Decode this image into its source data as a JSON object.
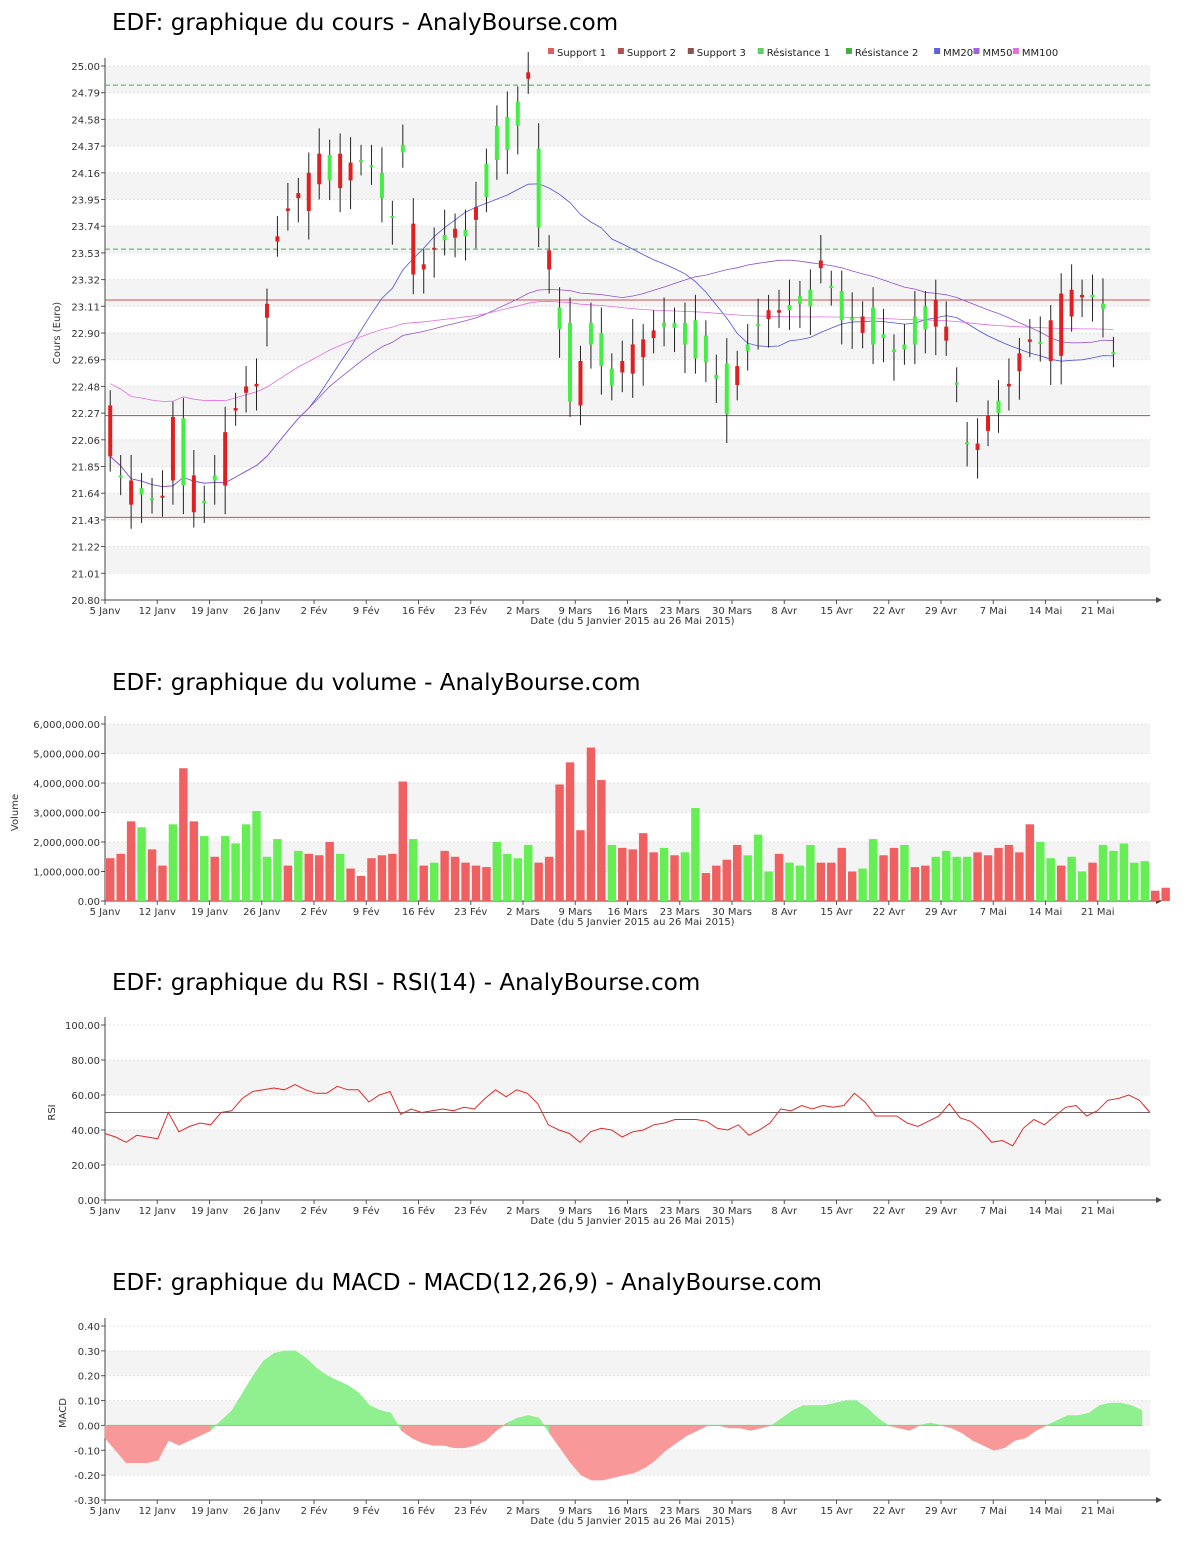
{
  "price": {
    "title": "EDF: graphique du cours - AnalyBourse.com",
    "ylabel": "Cours (Euro)",
    "xlabel": "Date (du 5 Janvier 2015 au 26 Mai 2015)"
  },
  "volume": {
    "title": "EDF: graphique du volume - AnalyBourse.com",
    "ylabel": "Volume",
    "xlabel": "Date (du 5 Janvier 2015 au 26 Mai 2015)"
  },
  "rsi": {
    "title": "EDF: graphique du RSI - RSI(14) - AnalyBourse.com",
    "ylabel": "RSI",
    "xlabel": "Date (du 5 Janvier 2015 au 26 Mai 2015)"
  },
  "macd": {
    "title": "EDF: graphique du MACD - MACD(12,26,9) - AnalyBourse.com",
    "ylabel": "MACD",
    "xlabel": "Date (du 5 Janvier 2015 au 26 Mai 2015)"
  },
  "chart_data": [
    {
      "id": "price",
      "type": "candlestick",
      "title": "EDF: graphique du cours - AnalyBourse.com",
      "xlabel": "Date (du 5 Janvier 2015 au 26 Mai 2015)",
      "ylabel": "Cours (Euro)",
      "ylim": [
        20.8,
        25.0
      ],
      "yticks": [
        "20.80",
        "21.01",
        "21.22",
        "21.43",
        "21.64",
        "21.85",
        "22.06",
        "22.27",
        "22.48",
        "22.69",
        "22.90",
        "23.11",
        "23.32",
        "23.53",
        "23.74",
        "23.95",
        "24.16",
        "24.37",
        "24.58",
        "24.79",
        "25.00"
      ],
      "xticks": [
        "5 Janv",
        "12 Janv",
        "19 Janv",
        "26 Janv",
        "2 Fév",
        "9 Fév",
        "16 Fév",
        "23 Fév",
        "2 Mars",
        "9 Mars",
        "16 Mars",
        "23 Mars",
        "30 Mars",
        "8 Avr",
        "15 Avr",
        "22 Avr",
        "29 Avr",
        "7 Mai",
        "14 Mai",
        "21 Mai"
      ],
      "legend": [
        {
          "name": "Support 1",
          "color": "#e06060"
        },
        {
          "name": "Support 2",
          "color": "#b05050"
        },
        {
          "name": "Support 3",
          "color": "#905050"
        },
        {
          "name": "Résistance 1",
          "color": "#60d060"
        },
        {
          "name": "Résistance 2",
          "color": "#40b040"
        },
        {
          "name": "MM20",
          "color": "#6060e0"
        },
        {
          "name": "MM50",
          "color": "#a060e0"
        },
        {
          "name": "MM100",
          "color": "#e070e0"
        }
      ],
      "levels": {
        "support_1": 23.16,
        "support_2": 22.25,
        "support_3": 21.45,
        "resistance_1": 23.56,
        "resistance_2": 24.85
      },
      "close": [
        21.93,
        21.78,
        21.55,
        21.68,
        21.6,
        21.61,
        21.74,
        22.23,
        21.49,
        21.58,
        21.78,
        21.7,
        22.29,
        22.43,
        22.48,
        23.02,
        23.62,
        23.86,
        23.96,
        23.86,
        24.07,
        24.3,
        24.04,
        24.1,
        24.26,
        24.22,
        24.16,
        23.82,
        24.38,
        23.36,
        23.4,
        23.56,
        23.67,
        23.65,
        23.71,
        23.79,
        24.23,
        24.53,
        24.6,
        24.72,
        24.9,
        24.35,
        23.4,
        23.1,
        22.98,
        22.33,
        22.98,
        22.9,
        22.62,
        22.59,
        22.58,
        22.71,
        22.86,
        22.98,
        22.98,
        22.98,
        23.0,
        22.88,
        22.57,
        22.66,
        22.49,
        22.81,
        22.97,
        23.01,
        23.06,
        23.12,
        23.19,
        23.24,
        23.41,
        23.27,
        23.23,
        23.02,
        22.9,
        23.1,
        22.89,
        22.77,
        22.81,
        23.03,
        23.11,
        22.95,
        22.84,
        22.51,
        22.04,
        21.98,
        22.13,
        22.37,
        22.48,
        22.6,
        22.83,
        22.83,
        22.68,
        22.72,
        23.03,
        23.18,
        23.2,
        23.13,
        22.75
      ],
      "open": [
        22.33,
        21.78,
        21.74,
        21.63,
        21.6,
        21.62,
        22.24,
        21.7,
        21.78,
        21.56,
        21.74,
        22.12,
        22.31,
        22.48,
        22.5,
        23.13,
        23.66,
        23.88,
        24.0,
        24.16,
        24.31,
        24.1,
        24.31,
        24.24,
        24.26,
        24.22,
        23.96,
        23.82,
        24.32,
        23.76,
        23.44,
        23.57,
        23.63,
        23.72,
        23.66,
        23.89,
        23.97,
        24.26,
        24.34,
        24.53,
        24.95,
        23.73,
        23.55,
        22.93,
        22.36,
        22.68,
        22.81,
        22.64,
        22.49,
        22.68,
        22.81,
        22.85,
        22.92,
        22.95,
        22.94,
        22.81,
        22.7,
        22.67,
        22.54,
        22.26,
        22.64,
        22.76,
        22.96,
        23.08,
        23.08,
        23.08,
        23.13,
        23.11,
        23.47,
        23.27,
        23.0,
        23.0,
        23.03,
        22.81,
        22.86,
        22.75,
        22.77,
        22.81,
        22.93,
        23.16,
        22.95,
        22.51,
        22.04,
        22.03,
        22.25,
        22.27,
        22.5,
        22.74,
        22.85,
        22.83,
        23.0,
        23.21,
        23.24,
        23.2,
        23.18,
        23.09,
        22.75
      ]
    },
    {
      "id": "volume",
      "type": "bar",
      "title": "EDF: graphique du volume - AnalyBourse.com",
      "xlabel": "Date (du 5 Janvier 2015 au 26 Mai 2015)",
      "ylabel": "Volume",
      "ylim": [
        0,
        6000000
      ],
      "yticks": [
        "0.00",
        "1,000,000.00",
        "2,000,000.00",
        "3,000,000.00",
        "4,000,000.00",
        "5,000,000.00",
        "6,000,000.00"
      ],
      "xticks": [
        "5 Janv",
        "12 Janv",
        "19 Janv",
        "26 Janv",
        "2 Fév",
        "9 Fév",
        "16 Fév",
        "23 Fév",
        "2 Mars",
        "9 Mars",
        "16 Mars",
        "23 Mars",
        "30 Mars",
        "8 Avr",
        "15 Avr",
        "22 Avr",
        "29 Avr",
        "7 Mai",
        "14 Mai",
        "21 Mai"
      ],
      "values": [
        1450000,
        1600000,
        2700000,
        2500000,
        1750000,
        1200000,
        2600000,
        4500000,
        2700000,
        2200000,
        1500000,
        2200000,
        1950000,
        2600000,
        3050000,
        1500000,
        2100000,
        1200000,
        1700000,
        1600000,
        1550000,
        2000000,
        1600000,
        1100000,
        850000,
        1450000,
        1550000,
        1600000,
        4050000,
        2100000,
        1200000,
        1300000,
        1700000,
        1500000,
        1300000,
        1200000,
        1150000,
        2000000,
        1600000,
        1450000,
        1900000,
        1300000,
        1500000,
        3950000,
        4700000,
        2400000,
        5200000,
        4100000,
        1900000,
        1800000,
        1750000,
        2300000,
        1650000,
        1800000,
        1550000,
        1650000,
        3150000,
        950000,
        1200000,
        1400000,
        1900000,
        1550000,
        2250000,
        1000000,
        1600000,
        1300000,
        1200000,
        1900000,
        1300000,
        1300000,
        1800000,
        1000000,
        1100000,
        2100000,
        1550000,
        1800000,
        1900000,
        1150000,
        1200000,
        1500000,
        1700000,
        1500000,
        1500000,
        1650000,
        1550000,
        1800000,
        1900000,
        1650000,
        2600000,
        2000000,
        1450000,
        1200000,
        1500000,
        1000000,
        1300000,
        1900000,
        1700000,
        1950000,
        1300000,
        1350000,
        350000,
        450000
      ],
      "colors": [
        "r",
        "r",
        "r",
        "g",
        "r",
        "r",
        "g",
        "r",
        "r",
        "g",
        "r",
        "g",
        "g",
        "g",
        "g",
        "g",
        "g",
        "r",
        "g",
        "r",
        "r",
        "r",
        "g",
        "r",
        "r",
        "r",
        "r",
        "r",
        "r",
        "g",
        "r",
        "g",
        "r",
        "r",
        "r",
        "r",
        "r",
        "g",
        "g",
        "g",
        "g",
        "r",
        "r",
        "r",
        "r",
        "r",
        "r",
        "r",
        "g",
        "r",
        "r",
        "r",
        "r",
        "g",
        "r",
        "g",
        "g",
        "r",
        "r",
        "r",
        "r",
        "g",
        "g",
        "g",
        "r",
        "g",
        "g",
        "g",
        "r",
        "r",
        "r",
        "r",
        "g",
        "g",
        "r",
        "r",
        "g",
        "r",
        "r",
        "g",
        "g",
        "g",
        "g",
        "r",
        "r",
        "r",
        "r",
        "r",
        "r",
        "g",
        "g",
        "r",
        "g",
        "g",
        "r",
        "g",
        "g",
        "g",
        "g",
        "g",
        "r",
        "r"
      ]
    },
    {
      "id": "rsi",
      "type": "line",
      "title": "EDF: graphique du RSI - RSI(14) - AnalyBourse.com",
      "xlabel": "Date (du 5 Janvier 2015 au 26 Mai 2015)",
      "ylabel": "RSI",
      "ylim": [
        0,
        100
      ],
      "reference": 50,
      "yticks": [
        "0.00",
        "20.00",
        "40.00",
        "60.00",
        "80.00",
        "100.00"
      ],
      "xticks": [
        "5 Janv",
        "12 Janv",
        "19 Janv",
        "26 Janv",
        "2 Fév",
        "9 Fév",
        "16 Fév",
        "23 Fév",
        "2 Mars",
        "9 Mars",
        "16 Mars",
        "23 Mars",
        "30 Mars",
        "8 Avr",
        "15 Avr",
        "22 Avr",
        "29 Avr",
        "7 Mai",
        "14 Mai",
        "21 Mai"
      ],
      "values": [
        38,
        36,
        33,
        37,
        36,
        35,
        50,
        39,
        42,
        44,
        43,
        50,
        51,
        58,
        62,
        63,
        64,
        63,
        66,
        63,
        61,
        61,
        65,
        63,
        63,
        56,
        60,
        62,
        49,
        52,
        50,
        51,
        52,
        51,
        53,
        52,
        58,
        63,
        59,
        63,
        61,
        55,
        43,
        40,
        38,
        33,
        39,
        41,
        40,
        36,
        39,
        40,
        43,
        44,
        46,
        46,
        46,
        45,
        41,
        40,
        43,
        37,
        40,
        44,
        52,
        51,
        54,
        52,
        54,
        53,
        54,
        61,
        56,
        48,
        48,
        48,
        44,
        42,
        45,
        48,
        55,
        47,
        45,
        40,
        33,
        34,
        31,
        41,
        46,
        43,
        48,
        53,
        54,
        48,
        51,
        57,
        58,
        60,
        57,
        50
      ],
      "series": [
        {
          "name": "RSI",
          "color": "#e03030"
        }
      ]
    },
    {
      "id": "macd",
      "type": "area",
      "title": "EDF: graphique du MACD - MACD(12,26,9) - AnalyBourse.com",
      "xlabel": "Date (du 5 Janvier 2015 au 26 Mai 2015)",
      "ylabel": "MACD",
      "ylim": [
        -0.3,
        0.4
      ],
      "yticks": [
        "-0.30",
        "-0.20",
        "-0.10",
        "0.00",
        "0.10",
        "0.20",
        "0.30",
        "0.40"
      ],
      "xticks": [
        "5 Janv",
        "12 Janv",
        "19 Janv",
        "26 Janv",
        "2 Fév",
        "9 Fév",
        "16 Fév",
        "23 Fév",
        "2 Mars",
        "9 Mars",
        "16 Mars",
        "23 Mars",
        "30 Mars",
        "8 Avr",
        "15 Avr",
        "22 Avr",
        "29 Avr",
        "7 Mai",
        "14 Mai",
        "21 Mai"
      ],
      "values": [
        -0.05,
        -0.1,
        -0.15,
        -0.15,
        -0.15,
        -0.14,
        -0.06,
        -0.08,
        -0.06,
        -0.04,
        -0.02,
        0.02,
        0.06,
        0.13,
        0.2,
        0.26,
        0.29,
        0.3,
        0.3,
        0.27,
        0.23,
        0.2,
        0.18,
        0.16,
        0.13,
        0.08,
        0.06,
        0.05,
        -0.02,
        -0.05,
        -0.07,
        -0.08,
        -0.08,
        -0.09,
        -0.09,
        -0.08,
        -0.06,
        -0.02,
        0.01,
        0.03,
        0.04,
        0.03,
        -0.03,
        -0.09,
        -0.15,
        -0.2,
        -0.22,
        -0.22,
        -0.21,
        -0.2,
        -0.19,
        -0.17,
        -0.14,
        -0.1,
        -0.07,
        -0.04,
        -0.02,
        0.0,
        0.0,
        -0.01,
        -0.01,
        -0.02,
        -0.01,
        0.0,
        0.03,
        0.06,
        0.08,
        0.08,
        0.08,
        0.09,
        0.1,
        0.1,
        0.07,
        0.03,
        0.0,
        -0.01,
        -0.02,
        0.0,
        0.01,
        0.0,
        -0.01,
        -0.03,
        -0.06,
        -0.08,
        -0.1,
        -0.09,
        -0.06,
        -0.05,
        -0.02,
        0.0,
        0.02,
        0.04,
        0.04,
        0.05,
        0.08,
        0.09,
        0.09,
        0.08,
        0.06
      ],
      "colors": {
        "positive": "#90f090",
        "negative": "#f89898"
      }
    }
  ]
}
